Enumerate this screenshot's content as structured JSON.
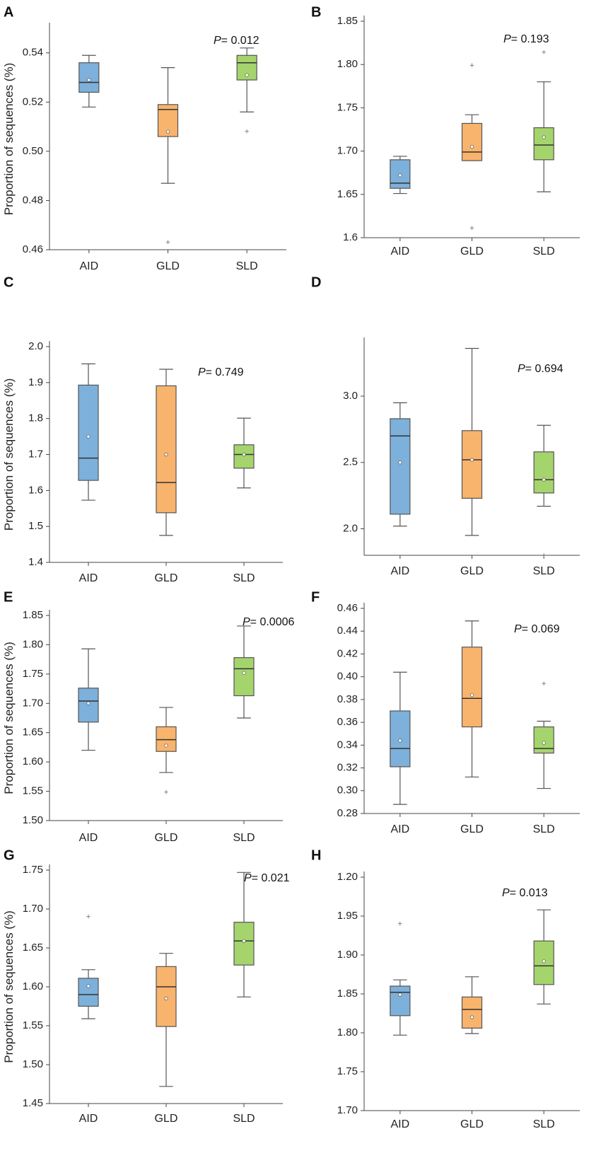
{
  "figure_title": "",
  "chart_data": [
    {
      "panel": "A",
      "type": "boxplot",
      "ylabel": "Proportion of sequences (%)",
      "ylim": [
        0.46,
        0.55
      ],
      "yticks": [
        "0.46",
        "0.48",
        "0.50",
        "0.52",
        "0.54"
      ],
      "categories": [
        "AID",
        "GLD",
        "SLD"
      ],
      "p_label": "P",
      "p_text": "= 0.012",
      "boxes": [
        {
          "group": "AID",
          "min": 0.518,
          "q1": 0.524,
          "median": 0.528,
          "q3": 0.536,
          "max": 0.539,
          "mean": 0.529,
          "outliers": []
        },
        {
          "group": "GLD",
          "min": 0.487,
          "q1": 0.506,
          "median": 0.517,
          "q3": 0.519,
          "max": 0.534,
          "mean": 0.508,
          "outliers": [
            0.463
          ]
        },
        {
          "group": "SLD",
          "min": 0.516,
          "q1": 0.529,
          "median": 0.536,
          "q3": 0.539,
          "max": 0.542,
          "mean": 0.531,
          "outliers": [
            0.508
          ]
        }
      ]
    },
    {
      "panel": "B",
      "type": "boxplot",
      "ylabel": "",
      "ylim": [
        1.6,
        1.85
      ],
      "yticks": [
        "1.6",
        "1.65",
        "1.70",
        "1.75",
        "1.80",
        "1.85"
      ],
      "categories": [
        "AID",
        "GLD",
        "SLD"
      ],
      "p_label": "P",
      "p_text": "= 0.193",
      "boxes": [
        {
          "group": "AID",
          "min": 1.651,
          "q1": 1.657,
          "median": 1.663,
          "q3": 1.69,
          "max": 1.694,
          "mean": 1.672,
          "outliers": []
        },
        {
          "group": "GLD",
          "min": 1.689,
          "q1": 1.689,
          "median": 1.699,
          "q3": 1.732,
          "max": 1.742,
          "mean": 1.705,
          "outliers": [
            1.799,
            1.611
          ]
        },
        {
          "group": "SLD",
          "min": 1.653,
          "q1": 1.69,
          "median": 1.707,
          "q3": 1.727,
          "max": 1.78,
          "mean": 1.716,
          "outliers": [
            1.814
          ]
        }
      ]
    },
    {
      "panel": "C",
      "type": "boxplot",
      "ylabel": "Proportion of sequences (%)",
      "ylim": [
        1.4,
        2.0
      ],
      "yticks": [
        "1.4",
        "1.5",
        "1.6",
        "1.7",
        "1.8",
        "1.9",
        "2.0"
      ],
      "categories": [
        "AID",
        "GLD",
        "SLD"
      ],
      "p_label": "P",
      "p_text": "= 0.749",
      "boxes": [
        {
          "group": "AID",
          "min": 1.573,
          "q1": 1.628,
          "median": 1.69,
          "q3": 1.893,
          "max": 1.952,
          "mean": 1.75,
          "outliers": []
        },
        {
          "group": "GLD",
          "min": 1.475,
          "q1": 1.538,
          "median": 1.622,
          "q3": 1.891,
          "max": 1.937,
          "mean": 1.7,
          "outliers": []
        },
        {
          "group": "SLD",
          "min": 1.607,
          "q1": 1.662,
          "median": 1.7,
          "q3": 1.727,
          "max": 1.801,
          "mean": 1.7,
          "outliers": []
        }
      ]
    },
    {
      "panel": "D",
      "type": "boxplot",
      "ylabel": "",
      "ylim": [
        1.8,
        3.4
      ],
      "yticks": [
        "2.0",
        "2.5",
        "3.0"
      ],
      "categories": [
        "AID",
        "GLD",
        "SLD"
      ],
      "p_label": "P",
      "p_text": "= 0.694",
      "boxes": [
        {
          "group": "AID",
          "min": 2.02,
          "q1": 2.11,
          "median": 2.7,
          "q3": 2.83,
          "max": 2.95,
          "mean": 2.5,
          "outliers": []
        },
        {
          "group": "GLD",
          "min": 1.95,
          "q1": 2.23,
          "median": 2.52,
          "q3": 2.74,
          "max": 3.36,
          "mean": 2.52,
          "outliers": []
        },
        {
          "group": "SLD",
          "min": 2.17,
          "q1": 2.27,
          "median": 2.37,
          "q3": 2.58,
          "max": 2.78,
          "mean": 2.37,
          "outliers": [
            1.8
          ]
        }
      ]
    },
    {
      "panel": "E",
      "type": "boxplot",
      "ylabel": "Proportion of sequences (%)",
      "ylim": [
        1.5,
        1.85
      ],
      "yticks": [
        "1.50",
        "1.55",
        "1.60",
        "1.65",
        "1.70",
        "1.75",
        "1.80",
        "1.85"
      ],
      "categories": [
        "AID",
        "GLD",
        "SLD"
      ],
      "p_label": "P",
      "p_text": "= 0.0006",
      "boxes": [
        {
          "group": "AID",
          "min": 1.62,
          "q1": 1.668,
          "median": 1.704,
          "q3": 1.726,
          "max": 1.793,
          "mean": 1.7,
          "outliers": []
        },
        {
          "group": "GLD",
          "min": 1.582,
          "q1": 1.618,
          "median": 1.638,
          "q3": 1.66,
          "max": 1.693,
          "mean": 1.628,
          "outliers": [
            1.548
          ]
        },
        {
          "group": "SLD",
          "min": 1.675,
          "q1": 1.713,
          "median": 1.759,
          "q3": 1.778,
          "max": 1.832,
          "mean": 1.752,
          "outliers": []
        }
      ]
    },
    {
      "panel": "F",
      "type": "boxplot",
      "ylabel": "",
      "ylim": [
        0.28,
        0.46
      ],
      "yticks": [
        "0.28",
        "0.30",
        "0.32",
        "0.34",
        "0.36",
        "0.38",
        "0.40",
        "0.42",
        "0.44",
        "0.46"
      ],
      "categories": [
        "AID",
        "GLD",
        "SLD"
      ],
      "p_label": "P",
      "p_text": "= 0.069",
      "boxes": [
        {
          "group": "AID",
          "min": 0.288,
          "q1": 0.321,
          "median": 0.337,
          "q3": 0.37,
          "max": 0.404,
          "mean": 0.344,
          "outliers": []
        },
        {
          "group": "GLD",
          "min": 0.312,
          "q1": 0.356,
          "median": 0.381,
          "q3": 0.426,
          "max": 0.449,
          "mean": 0.384,
          "outliers": []
        },
        {
          "group": "SLD",
          "min": 0.302,
          "q1": 0.333,
          "median": 0.337,
          "q3": 0.356,
          "max": 0.361,
          "mean": 0.342,
          "outliers": [
            0.394
          ]
        }
      ]
    },
    {
      "panel": "G",
      "type": "boxplot",
      "ylabel": "Proportion of sequences (%)",
      "ylim": [
        1.45,
        1.75
      ],
      "yticks": [
        "1.45",
        "1.50",
        "1.55",
        "1.60",
        "1.65",
        "1.70",
        "1.75"
      ],
      "categories": [
        "AID",
        "GLD",
        "SLD"
      ],
      "p_label": "P",
      "p_text": "= 0.021",
      "boxes": [
        {
          "group": "AID",
          "min": 1.559,
          "q1": 1.575,
          "median": 1.59,
          "q3": 1.611,
          "max": 1.622,
          "mean": 1.601,
          "outliers": [
            1.69
          ]
        },
        {
          "group": "GLD",
          "min": 1.472,
          "q1": 1.549,
          "median": 1.6,
          "q3": 1.626,
          "max": 1.643,
          "mean": 1.585,
          "outliers": []
        },
        {
          "group": "SLD",
          "min": 1.587,
          "q1": 1.628,
          "median": 1.659,
          "q3": 1.683,
          "max": 1.747,
          "mean": 1.659,
          "outliers": []
        }
      ]
    },
    {
      "panel": "H",
      "type": "boxplot",
      "ylabel": "",
      "ylim": [
        1.7,
        2.0
      ],
      "yticks": [
        "1.70",
        "1.75",
        "1.80",
        "1.85",
        "1.90",
        "1.95",
        "1.20"
      ],
      "categories": [
        "AID",
        "GLD",
        "SLD"
      ],
      "p_label": "P",
      "p_text": "= 0.013",
      "boxes": [
        {
          "group": "AID",
          "min": 1.797,
          "q1": 1.822,
          "median": 1.852,
          "q3": 1.86,
          "max": 1.868,
          "mean": 1.849,
          "outliers": [
            1.94
          ]
        },
        {
          "group": "GLD",
          "min": 1.799,
          "q1": 1.806,
          "median": 1.83,
          "q3": 1.846,
          "max": 1.872,
          "mean": 1.82,
          "outliers": []
        },
        {
          "group": "SLD",
          "min": 1.837,
          "q1": 1.862,
          "median": 1.886,
          "q3": 1.918,
          "max": 1.958,
          "mean": 1.892,
          "outliers": []
        }
      ]
    }
  ],
  "colors": {
    "AID": "#7db0da",
    "GLD": "#f8b36c",
    "SLD": "#a5d46d",
    "stroke": "#555555"
  }
}
